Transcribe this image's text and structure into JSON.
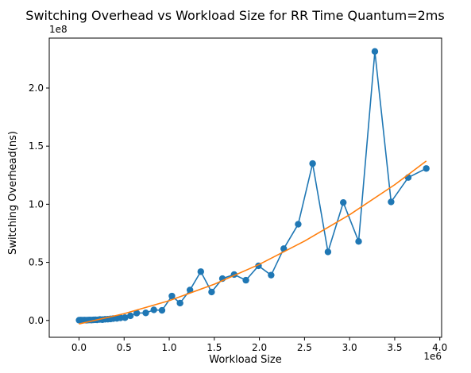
{
  "chart_data": {
    "type": "line",
    "title": "Switching Overhead vs Workload Size for RR Time Quantum=2ms",
    "xlabel": "Workload Size",
    "ylabel": "Switching Overhead(ns)",
    "x_offset_label": "1e6",
    "y_offset_label": "1e8",
    "xlim": [
      -330000,
      4020000
    ],
    "ylim": [
      -14500000,
      243000000
    ],
    "x_ticks": [
      0,
      500000,
      1000000,
      1500000,
      2000000,
      2500000,
      3000000,
      3500000,
      4000000
    ],
    "x_tick_labels": [
      "0.0",
      "0.5",
      "1.0",
      "1.5",
      "2.0",
      "2.5",
      "3.0",
      "3.5",
      "4.0"
    ],
    "y_ticks": [
      0,
      50000000,
      100000000,
      150000000,
      200000000
    ],
    "y_tick_labels": [
      "0.0",
      "0.5",
      "1.0",
      "1.5",
      "2.0"
    ],
    "grid": false,
    "legend": "none",
    "series": [
      {
        "style": "line-with-markers",
        "color": "#1f77b4",
        "x": [
          1000,
          20000,
          40000,
          60000,
          80000,
          100000,
          120000,
          140000,
          160000,
          180000,
          200000,
          230000,
          260000,
          290000,
          320000,
          350000,
          380000,
          420000,
          460000,
          510000,
          570000,
          640000,
          740000,
          830000,
          920000,
          1030000,
          1120000,
          1230000,
          1350000,
          1470000,
          1590000,
          1720000,
          1850000,
          1990000,
          2130000,
          2270000,
          2430000,
          2590000,
          2760000,
          2930000,
          3100000,
          3280000,
          3460000,
          3650000,
          3850000
        ],
        "y": [
          200000,
          300000,
          200000,
          300000,
          200000,
          300000,
          400000,
          300000,
          500000,
          600000,
          500000,
          800000,
          700000,
          1000000,
          1100000,
          1300000,
          1600000,
          1800000,
          2200000,
          2400000,
          4000000,
          6300000,
          6500000,
          9100000,
          8700000,
          21000000,
          14900000,
          26200000,
          42000000,
          24500000,
          36000000,
          39500000,
          34600000,
          47000000,
          39000000,
          61800000,
          82800000,
          135000000,
          59000000,
          101500000,
          68000000,
          231500000,
          102000000,
          123000000,
          130800000
        ]
      },
      {
        "style": "line",
        "color": "#ff7f0e",
        "fit": "polynomial",
        "x": [
          0,
          500000,
          1000000,
          1500000,
          2000000,
          2500000,
          3000000,
          3500000,
          3850000
        ],
        "y": [
          -3000000,
          5800000,
          17000000,
          31200000,
          48300000,
          68300000,
          91000000,
          116800000,
          137200000
        ]
      }
    ]
  }
}
